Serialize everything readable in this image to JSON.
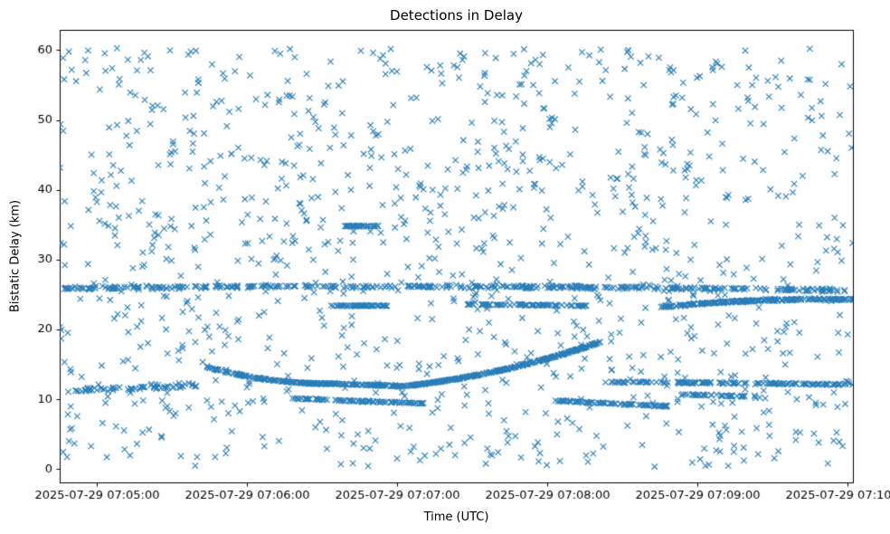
{
  "chart_data": {
    "type": "scatter",
    "title": "Detections in Delay",
    "xlabel": "Time (UTC)",
    "ylabel": "Bistatic Delay (km)",
    "marker": {
      "symbol": "x",
      "color": "#1f77b4",
      "size": 3.2,
      "line_width": 1.1
    },
    "x_axis": {
      "tick_labels": [
        "2025-07-29 07:05:00",
        "2025-07-29 07:06:00",
        "2025-07-29 07:07:00",
        "2025-07-29 07:08:00",
        "2025-07-29 07:09:00",
        "2025-07-29 07:10:00"
      ],
      "tick_seconds": [
        0,
        60,
        120,
        180,
        240,
        300
      ],
      "range_seconds": [
        -15,
        302
      ],
      "grid": false
    },
    "y_axis": {
      "ticks": [
        0,
        10,
        20,
        30,
        40,
        50,
        60
      ],
      "range": [
        -1.9,
        62.9
      ],
      "grid": false
    },
    "seed": 7,
    "tracks": [
      {
        "name": "band-26-full-width",
        "t": [
          -14,
          300
        ],
        "y": [
          25.9,
          25.6
        ],
        "bow": 0.4,
        "count": 420,
        "jitter": 0.35
      },
      {
        "name": "band-24-right",
        "t": [
          225,
          311
        ],
        "y": [
          23.2,
          24.2
        ],
        "bow": 0.5,
        "count": 260,
        "jitter": 0.2
      },
      {
        "name": "band-23-5-mid",
        "t": [
          148,
          196
        ],
        "y": [
          23.6,
          23.4
        ],
        "bow": 0,
        "count": 90,
        "jitter": 0.15
      },
      {
        "name": "band-23-4-early",
        "t": [
          93,
          116
        ],
        "y": [
          23.4,
          23.4
        ],
        "bow": 0,
        "count": 55,
        "jitter": 0.12
      },
      {
        "name": "descending-track",
        "t": [
          44,
          86
        ],
        "y": [
          14.6,
          12.3
        ],
        "bow": -0.45,
        "count": 130,
        "jitter": 0.12
      },
      {
        "name": "band-12-mid",
        "t": [
          86,
          122
        ],
        "y": [
          12.3,
          11.9
        ],
        "bow": 0,
        "count": 110,
        "jitter": 0.15
      },
      {
        "name": "rising-track",
        "t": [
          120,
          201
        ],
        "y": [
          11.8,
          18.2
        ],
        "bow": -0.9,
        "count": 300,
        "jitter": 0.1
      },
      {
        "name": "band-12-right",
        "t": [
          203,
          311
        ],
        "y": [
          12.5,
          12.1
        ],
        "bow": 0,
        "count": 150,
        "jitter": 0.2
      },
      {
        "name": "band-10",
        "t": [
          78,
          132
        ],
        "y": [
          10.1,
          9.4
        ],
        "bow": 0,
        "count": 90,
        "jitter": 0.15
      },
      {
        "name": "band-9-5-right",
        "t": [
          183,
          228
        ],
        "y": [
          9.8,
          9.0
        ],
        "bow": 0,
        "count": 90,
        "jitter": 0.15
      },
      {
        "name": "segment-35",
        "t": [
          99,
          113
        ],
        "y": [
          34.8,
          34.8
        ],
        "bow": 0,
        "count": 45,
        "jitter": 0.1
      },
      {
        "name": "band-12-left",
        "t": [
          -12,
          40
        ],
        "y": [
          11.2,
          12.0
        ],
        "bow": 0,
        "count": 70,
        "jitter": 0.5
      },
      {
        "name": "band-10-6-right",
        "t": [
          233,
          264
        ],
        "y": [
          10.7,
          10.4
        ],
        "bow": 0,
        "count": 40,
        "jitter": 0.2
      }
    ],
    "clutter": {
      "count": 1100,
      "t_range": [
        -15,
        302
      ],
      "y_range": [
        0.3,
        60.3
      ]
    }
  }
}
